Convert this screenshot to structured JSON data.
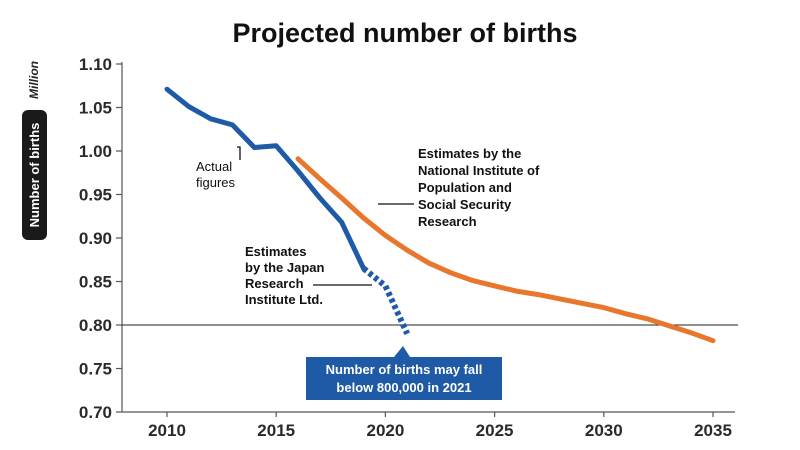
{
  "chart_data": {
    "type": "line",
    "title": "Projected number of births",
    "ylabel": "Number of births",
    "yunit": "Million",
    "ylim": [
      0.7,
      1.1
    ],
    "xlim": [
      2010,
      2035
    ],
    "yticks": [
      "1.10",
      "1.05",
      "1.00",
      "0.95",
      "0.90",
      "0.85",
      "0.80",
      "0.75",
      "0.70"
    ],
    "xticks": [
      "2010",
      "2015",
      "2020",
      "2025",
      "2030",
      "2035"
    ],
    "reference_line": 0.8,
    "grid": false,
    "colors": {
      "actual": "#1f5aa6",
      "nipssr": "#e8762c",
      "callout": "#1f5aa6",
      "axis": "#555555"
    },
    "series": [
      {
        "name": "Actual figures",
        "style": "solid",
        "x": [
          2010,
          2011,
          2012,
          2013,
          2014,
          2015,
          2016,
          2017,
          2018,
          2019
        ],
        "y": [
          1.071,
          1.051,
          1.037,
          1.03,
          1.004,
          1.006,
          0.977,
          0.946,
          0.918,
          0.865
        ]
      },
      {
        "name": "Estimates by the Japan Research Institute Ltd.",
        "style": "dashed",
        "x": [
          2019,
          2020,
          2021
        ],
        "y": [
          0.865,
          0.845,
          0.79
        ]
      },
      {
        "name": "Estimates by the National Institute of Population and Social Security Research",
        "style": "solid",
        "x": [
          2016,
          2017,
          2018,
          2019,
          2020,
          2021,
          2022,
          2023,
          2024,
          2025,
          2026,
          2027,
          2028,
          2029,
          2030,
          2031,
          2032,
          2033,
          2034,
          2035
        ],
        "y": [
          0.991,
          0.968,
          0.946,
          0.923,
          0.903,
          0.886,
          0.871,
          0.86,
          0.851,
          0.845,
          0.839,
          0.835,
          0.83,
          0.825,
          0.82,
          0.813,
          0.807,
          0.799,
          0.791,
          0.782
        ]
      }
    ],
    "annotations": {
      "actual": [
        "Actual",
        "figures"
      ],
      "jri": [
        "Estimates",
        "by the Japan",
        "Research",
        "Institute Ltd."
      ],
      "nipssr": [
        "Estimates by the",
        "National Institute of",
        "Population and",
        "Social Security",
        "Research"
      ],
      "callout": [
        "Number of births may fall",
        "below 800,000 in 2021"
      ]
    }
  }
}
